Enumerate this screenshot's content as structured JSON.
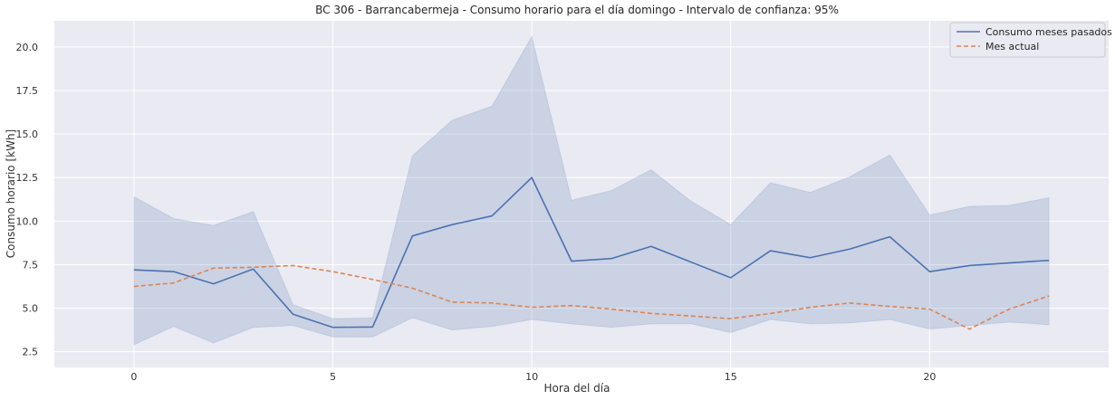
{
  "chart_data": {
    "type": "line",
    "title": "BC 306 - Barrancabermeja - Consumo horario para el día domingo - Intervalo de confianza: 95%",
    "xlabel": "Hora del día",
    "ylabel": "Consumo horario [kWh]",
    "xlim": [
      -2,
      24.5
    ],
    "ylim": [
      1.6,
      21.5
    ],
    "xticks": [
      0,
      5,
      10,
      15,
      20
    ],
    "yticks": [
      2.5,
      5.0,
      7.5,
      10.0,
      12.5,
      15.0,
      17.5,
      20.0
    ],
    "ytick_labels": [
      "2.5",
      "5.0",
      "7.5",
      "10.0",
      "12.5",
      "15.0",
      "17.5",
      "20.0"
    ],
    "grid": true,
    "legend_position": "top-right",
    "x": [
      0,
      1,
      2,
      3,
      4,
      5,
      6,
      7,
      8,
      9,
      10,
      11,
      12,
      13,
      14,
      15,
      16,
      17,
      18,
      19,
      20,
      21,
      22,
      23
    ],
    "series": [
      {
        "name": "Consumo meses pasados",
        "style": "solid",
        "color": "#4c72b0",
        "values": [
          7.2,
          7.1,
          6.4,
          7.25,
          4.65,
          3.9,
          3.92,
          9.15,
          9.8,
          10.3,
          12.5,
          7.7,
          7.85,
          8.55,
          7.65,
          6.75,
          8.3,
          7.9,
          8.4,
          9.1,
          7.1,
          7.45,
          7.6,
          7.75
        ],
        "ci_lower": [
          2.9,
          3.95,
          3.0,
          3.9,
          4.0,
          3.35,
          3.35,
          4.45,
          3.75,
          3.95,
          4.35,
          4.1,
          3.9,
          4.1,
          4.1,
          3.6,
          4.35,
          4.1,
          4.15,
          4.35,
          3.8,
          4.0,
          4.2,
          4.05
        ],
        "ci_upper": [
          11.4,
          10.15,
          9.75,
          10.55,
          5.2,
          4.4,
          4.45,
          13.75,
          15.8,
          16.6,
          20.6,
          11.2,
          11.75,
          12.95,
          11.15,
          9.8,
          12.2,
          11.65,
          12.55,
          13.8,
          10.35,
          10.85,
          10.9,
          11.35
        ]
      },
      {
        "name": "Mes actual",
        "style": "dashed",
        "color": "#dd8452",
        "values": [
          6.25,
          6.45,
          7.3,
          7.35,
          7.45,
          7.1,
          6.65,
          6.15,
          5.35,
          5.3,
          5.05,
          5.15,
          4.95,
          4.7,
          4.55,
          4.4,
          4.7,
          5.05,
          5.3,
          5.1,
          4.95,
          3.8,
          4.95,
          5.7
        ]
      }
    ]
  },
  "colors": {
    "plot_background": "#eaeaf2",
    "grid": "#ffffff",
    "ci_fill": "#4c72b0"
  }
}
